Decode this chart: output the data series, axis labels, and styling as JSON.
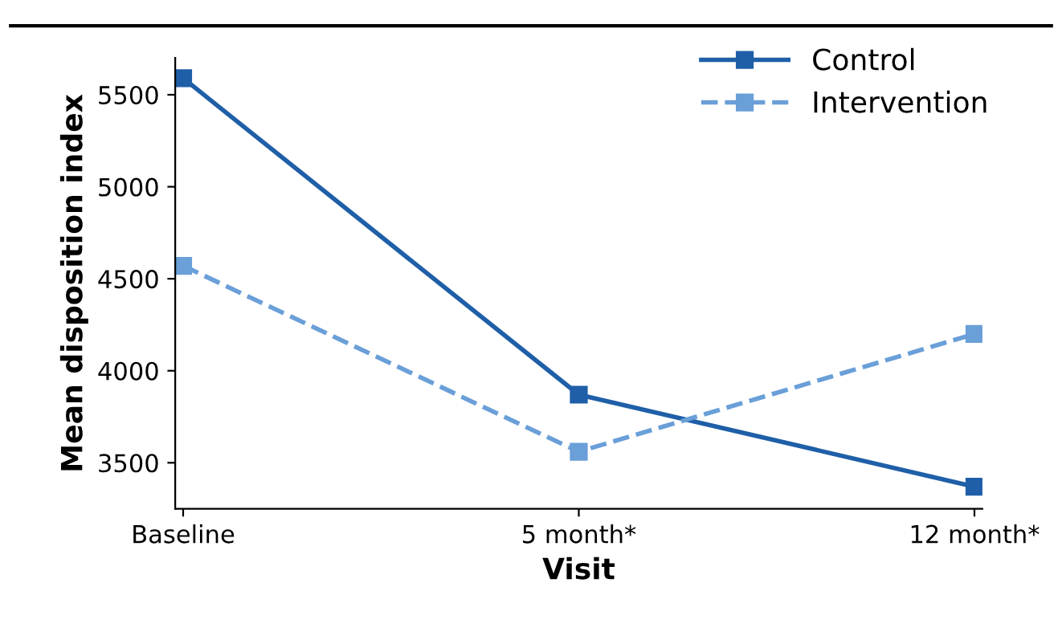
{
  "chart_data": {
    "type": "line",
    "xlabel": "Visit",
    "ylabel": "Mean disposition index",
    "categories": [
      "Baseline",
      "5 month*",
      "12 month*"
    ],
    "series": [
      {
        "name": "Control",
        "color": "#1f5fa8",
        "values": [
          5590,
          3870,
          3370
        ],
        "line_style": "solid"
      },
      {
        "name": "Intervention",
        "color": "#6a9fd8",
        "values": [
          4570,
          3560,
          4200
        ],
        "line_style": "dashed"
      }
    ],
    "ylim": [
      3250,
      5700
    ],
    "yticks": [
      3500,
      4000,
      4500,
      5000,
      5500
    ],
    "marker": "square",
    "legend": "top right",
    "grid": false
  }
}
